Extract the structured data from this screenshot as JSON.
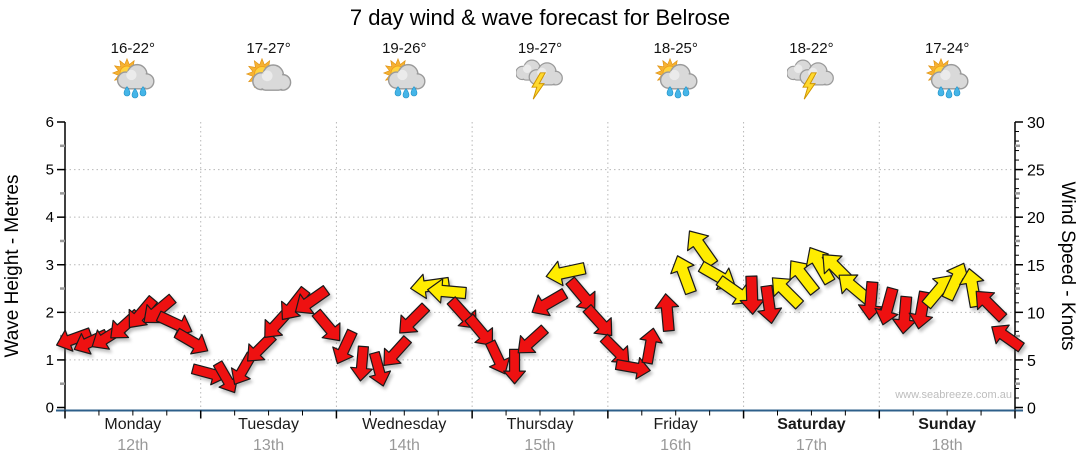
{
  "title": "7 day wind & wave forecast for Belrose",
  "watermark": "www.seabreeze.com.au",
  "colors": {
    "arrow_below_12kn": "#ee1111",
    "arrow_12kn_and_over": "#ffec00",
    "arrow_outline": "#1a1a1a",
    "gridline": "#b8b8b8",
    "axis_line": "#000000",
    "baseline_blue": "#2d5f8a",
    "date_grey": "#999999",
    "watermark_grey": "#bdbdbd"
  },
  "days": [
    {
      "name": "Monday",
      "date": "12th",
      "temp": "16-22°",
      "icon": "sun-cloud-rain",
      "weekend": false
    },
    {
      "name": "Tuesday",
      "date": "13th",
      "temp": "17-27°",
      "icon": "sun-cloud",
      "weekend": false
    },
    {
      "name": "Wednesday",
      "date": "14th",
      "temp": "19-26°",
      "icon": "sun-cloud-rain",
      "weekend": false
    },
    {
      "name": "Thursday",
      "date": "15th",
      "temp": "19-27°",
      "icon": "cloud-lightning",
      "weekend": false
    },
    {
      "name": "Friday",
      "date": "16th",
      "temp": "18-25°",
      "icon": "sun-cloud-rain",
      "weekend": false
    },
    {
      "name": "Saturday",
      "date": "17th",
      "temp": "18-22°",
      "icon": "cloud-lightning",
      "weekend": true
    },
    {
      "name": "Sunday",
      "date": "18th",
      "temp": "17-24°",
      "icon": "sun-cloud-rain",
      "weekend": true
    }
  ],
  "chart_data": {
    "type": "wind-arrow-series",
    "title": "7 day wind & wave forecast for Belrose",
    "left_axis": {
      "label": "Wave Height - Metres",
      "min": 0,
      "max": 6,
      "major_tick": 1,
      "minor_tick": 0.5
    },
    "right_axis": {
      "label": "Wind Speed - Knots",
      "min": 0,
      "max": 30,
      "major_tick": 5,
      "minor_tick": 1
    },
    "grid": {
      "horizontal_dotted_at_metres": [
        1,
        2,
        3,
        4,
        5
      ],
      "vertical_dotted_at_day_boundaries": true
    },
    "arrow_interval_hours": 3,
    "first_arrow_offset_hours": 1.5,
    "color_rule": "red below 12 knots, yellow at 12 knots and above",
    "point_format": [
      "wind_speed_knots",
      "direction_deg_pointing_to_0N_90E_180S_270W"
    ],
    "series": [
      {
        "day": "Monday",
        "points": [
          [
            7.2,
            250
          ],
          [
            6.9,
            245
          ],
          [
            7.4,
            238
          ],
          [
            8.6,
            228
          ],
          [
            9.9,
            220
          ],
          [
            10.2,
            230
          ],
          [
            8.8,
            115
          ],
          [
            6.9,
            120
          ]
        ]
      },
      {
        "day": "Tuesday",
        "points": [
          [
            3.6,
            105
          ],
          [
            3.1,
            150
          ],
          [
            4.0,
            210
          ],
          [
            6.2,
            225
          ],
          [
            8.8,
            222
          ],
          [
            10.8,
            218
          ],
          [
            11.2,
            235
          ],
          [
            8.5,
            140
          ]
        ]
      },
      {
        "day": "Wednesday",
        "points": [
          [
            6.3,
            205
          ],
          [
            4.6,
            185
          ],
          [
            4.0,
            165
          ],
          [
            5.8,
            222
          ],
          [
            9.2,
            225
          ],
          [
            12.8,
            262
          ],
          [
            12.2,
            275
          ],
          [
            9.8,
            138
          ]
        ]
      },
      {
        "day": "Thursday",
        "points": [
          [
            8.0,
            140
          ],
          [
            5.2,
            155
          ],
          [
            4.3,
            180
          ],
          [
            7.0,
            228
          ],
          [
            11.0,
            240
          ],
          [
            14.2,
            258
          ],
          [
            11.8,
            140
          ],
          [
            9.0,
            138
          ]
        ]
      },
      {
        "day": "Friday",
        "points": [
          [
            6.0,
            135
          ],
          [
            4.2,
            100
          ],
          [
            6.5,
            10
          ],
          [
            10.0,
            355
          ],
          [
            14.0,
            340
          ],
          [
            16.8,
            325
          ],
          [
            13.8,
            120
          ],
          [
            12.2,
            125
          ]
        ]
      },
      {
        "day": "Saturday",
        "points": [
          [
            11.8,
            178
          ],
          [
            10.8,
            172
          ],
          [
            12.2,
            315
          ],
          [
            13.8,
            322
          ],
          [
            15.0,
            330
          ],
          [
            14.6,
            315
          ],
          [
            12.6,
            310
          ],
          [
            11.2,
            185
          ]
        ]
      },
      {
        "day": "Sunday",
        "points": [
          [
            10.6,
            195
          ],
          [
            9.7,
            185
          ],
          [
            10.2,
            190
          ],
          [
            12.3,
            40
          ],
          [
            13.3,
            25
          ],
          [
            12.6,
            350
          ],
          [
            10.8,
            315
          ],
          [
            7.4,
            305
          ]
        ]
      }
    ]
  }
}
